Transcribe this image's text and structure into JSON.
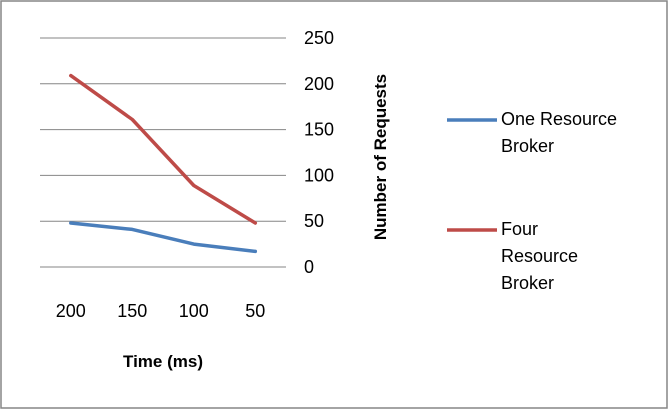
{
  "chart_data": {
    "type": "line",
    "title": "",
    "xlabel": "Time (ms)",
    "ylabel": "Number of Requests",
    "categories": [
      "200",
      "150",
      "100",
      "50"
    ],
    "ylim": [
      0,
      250
    ],
    "yticks": [
      "0",
      "50",
      "100",
      "150",
      "200",
      "250"
    ],
    "grid": "horizontal",
    "y_axis_side": "right",
    "legend_position": "right",
    "series": [
      {
        "name": "One Resource Broker",
        "legend_lines": [
          "One Resource",
          "Broker"
        ],
        "color": "#4a7ebb",
        "values": [
          48,
          41,
          25,
          17
        ]
      },
      {
        "name": "Four Resource Broker",
        "legend_lines": [
          "Four",
          "Resource",
          "Broker"
        ],
        "color": "#be4b48",
        "values": [
          209,
          161,
          89,
          48
        ]
      }
    ]
  },
  "style": {
    "grid_color": "#868686",
    "frame_color": "#868686"
  }
}
